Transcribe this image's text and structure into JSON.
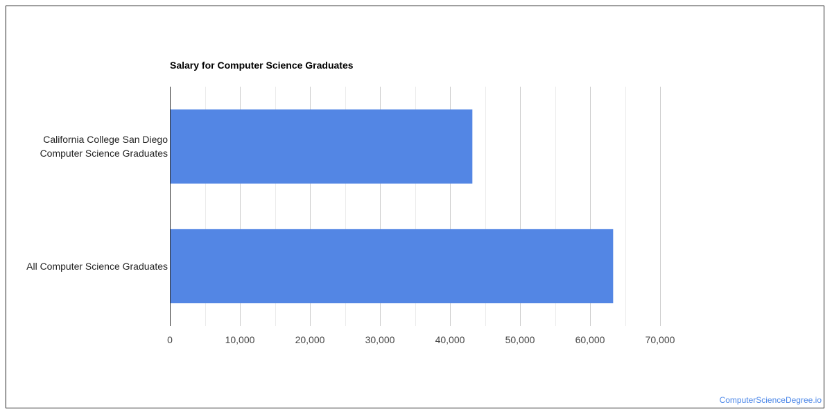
{
  "chart_data": {
    "type": "bar",
    "orientation": "horizontal",
    "title": "Salary for Computer Science Graduates",
    "categories": [
      "California College San Diego Computer Science Graduates",
      "All Computer Science Graduates"
    ],
    "category_lines": [
      [
        "California College San Diego",
        "Computer Science Graduates"
      ],
      [
        "All Computer Science Graduates"
      ]
    ],
    "values": [
      43200,
      63300
    ],
    "xlim": [
      0,
      70000
    ],
    "xticks": [
      0,
      10000,
      20000,
      30000,
      40000,
      50000,
      60000,
      70000
    ],
    "xtick_labels": [
      "0",
      "10,000",
      "20,000",
      "30,000",
      "40,000",
      "50,000",
      "60,000",
      "70,000"
    ],
    "grid": true,
    "bar_color": "#5386e4",
    "gridline_color": "#cccccc",
    "minor_gridline_color": "#ebebeb"
  },
  "watermark": "ComputerScienceDegree.io"
}
